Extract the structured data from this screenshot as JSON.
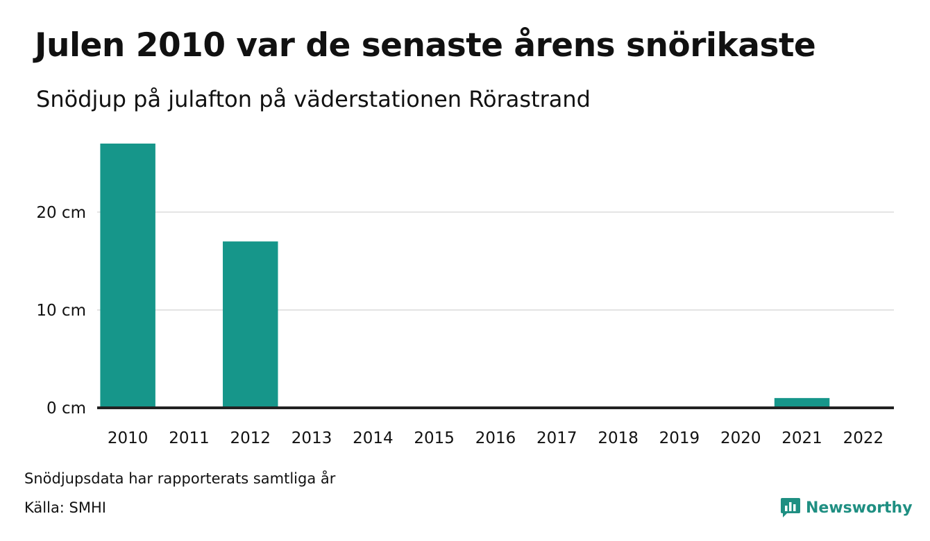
{
  "header": {
    "title": "Julen 2010 var de senaste årens snörikaste",
    "subtitle": "Snödjup på julafton på väderstationen Rörastrand"
  },
  "footer": {
    "note": "Snödjupsdata har rapporterats samtliga år",
    "source": "Källa: SMHI",
    "brand": "Newsworthy"
  },
  "colors": {
    "bar": "#16968a",
    "grid": "#e3e3e3",
    "baseline": "#222222",
    "brand": "#1f8f82"
  },
  "icons": {
    "brand_logo": "newsworthy-chat-bars-icon"
  },
  "chart_data": {
    "type": "bar",
    "categories": [
      "2010",
      "2011",
      "2012",
      "2013",
      "2014",
      "2015",
      "2016",
      "2017",
      "2018",
      "2019",
      "2020",
      "2021",
      "2022"
    ],
    "values": [
      27,
      0,
      17,
      0,
      0,
      0,
      0,
      0,
      0,
      0,
      0,
      1,
      0
    ],
    "unit": "cm",
    "y_ticks": [
      {
        "value": 0,
        "label": "0 cm"
      },
      {
        "value": 10,
        "label": "10 cm"
      },
      {
        "value": 20,
        "label": "20 cm"
      }
    ],
    "ylim": [
      0,
      27
    ],
    "grid": true,
    "legend": "none"
  }
}
